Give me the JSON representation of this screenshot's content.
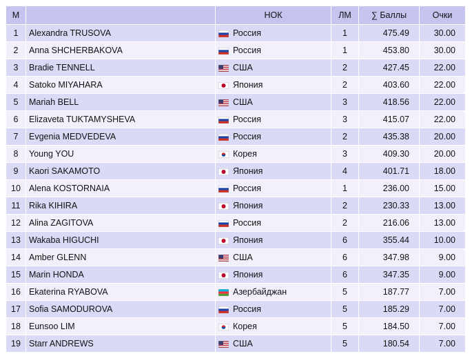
{
  "table": {
    "header": [
      "М",
      "НОК",
      "ЛМ",
      "∑ Баллы",
      "Очки"
    ],
    "rows": [
      [
        "1",
        "Alexandra TRUSOVA",
        "Россия",
        "1",
        "475.49",
        "30.00"
      ],
      [
        "2",
        "Anna SHCHERBAKOVA",
        "Россия",
        "1",
        "453.80",
        "30.00"
      ],
      [
        "3",
        "Bradie TENNELL",
        "США",
        "2",
        "427.45",
        "22.00"
      ],
      [
        "4",
        "Satoko MIYAHARA",
        "Япония",
        "2",
        "403.60",
        "22.00"
      ],
      [
        "5",
        "Mariah BELL",
        "США",
        "3",
        "418.56",
        "22.00"
      ],
      [
        "6",
        "Elizaveta TUKTAMYSHEVA",
        "Россия",
        "3",
        "415.07",
        "22.00"
      ],
      [
        "7",
        "Evgenia MEDVEDEVA",
        "Россия",
        "2",
        "435.38",
        "20.00"
      ],
      [
        "8",
        "Young YOU",
        "Корея",
        "3",
        "409.30",
        "20.00"
      ],
      [
        "9",
        "Kaori SAKAMOTO",
        "Япония",
        "4",
        "401.71",
        "18.00"
      ],
      [
        "10",
        "Alena KOSTORNAIA",
        "Россия",
        "1",
        "236.00",
        "15.00"
      ],
      [
        "11",
        "Rika KIHIRA",
        "Япония",
        "2",
        "230.33",
        "13.00"
      ],
      [
        "12",
        "Alina ZAGITOVA",
        "Россия",
        "2",
        "216.06",
        "13.00"
      ],
      [
        "13",
        "Wakaba HIGUCHI",
        "Япония",
        "6",
        "355.44",
        "10.00"
      ],
      [
        "14",
        "Amber GLENN",
        "США",
        "6",
        "347.98",
        "9.00"
      ],
      [
        "15",
        "Marin HONDA",
        "Япония",
        "6",
        "347.35",
        "9.00"
      ],
      [
        "16",
        "Ekaterina RYABOVA",
        "Азербайджан",
        "5",
        "187.77",
        "7.00"
      ],
      [
        "17",
        "Sofia SAMODUROVA",
        "Россия",
        "5",
        "185.29",
        "7.00"
      ],
      [
        "18",
        "Eunsoo LIM",
        "Корея",
        "5",
        "184.50",
        "7.00"
      ],
      [
        "19",
        "Starr ANDREWS",
        "США",
        "5",
        "180.54",
        "7.00"
      ]
    ]
  }
}
